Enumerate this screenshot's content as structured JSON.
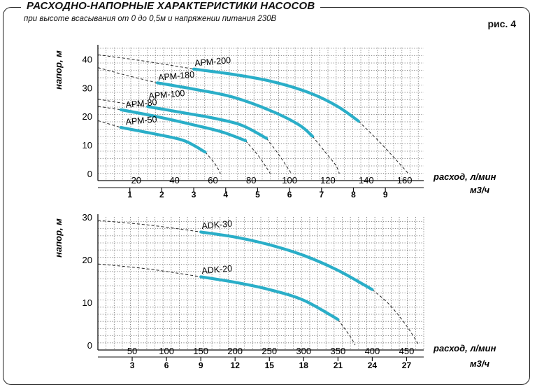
{
  "header": {
    "title": "РАСХОДНО-НАПОРНЫЕ ХАРАКТЕРИСТИКИ НАСОСОВ",
    "subtitle": "при высоте всасывания от 0 до 0,5м  и напряжении питания 230В",
    "figure_label": "рис. 4"
  },
  "colors": {
    "curve": "#2aaec8",
    "grid": "#666666",
    "axis": "#111111"
  },
  "chart_data": [
    {
      "type": "line",
      "ylabel": "напор, м",
      "xlabel": "расход, л/мин",
      "x2label": "м3/ч",
      "xlim": [
        0,
        170
      ],
      "ylim": [
        0,
        44
      ],
      "x_ticks": [
        "20",
        "40",
        "60",
        "80",
        "100",
        "120",
        "140",
        "160"
      ],
      "x_tick_values": [
        20,
        40,
        60,
        80,
        100,
        120,
        140,
        160
      ],
      "y_ticks": [
        "0",
        "10",
        "20",
        "30",
        "40"
      ],
      "y_tick_values": [
        0,
        10,
        20,
        30,
        40
      ],
      "x2_ticks": [
        "1",
        "2",
        "3",
        "4",
        "5",
        "6",
        "7",
        "8",
        "9"
      ],
      "x2_tick_values": [
        16.67,
        33.33,
        50,
        66.67,
        83.33,
        100,
        116.67,
        133.33,
        150
      ],
      "grid": true,
      "series": [
        {
          "name": "АРМ-200",
          "label_at": [
            50,
            36.5
          ],
          "dashed": [
            [
              0,
              41.5
            ],
            [
              20,
              39.7
            ],
            [
              40,
              37.6
            ],
            [
              50,
              36.5
            ]
          ],
          "solid": [
            [
              50,
              36.5
            ],
            [
              70,
              34.7
            ],
            [
              90,
              32.3
            ],
            [
              110,
              28.3
            ],
            [
              125,
              23.5
            ],
            [
              136,
              18.3
            ]
          ],
          "dashed_end": [
            [
              136,
              18.3
            ],
            [
              147,
              11
            ],
            [
              158,
              3
            ],
            [
              162,
              0
            ]
          ]
        },
        {
          "name": "АРМ-180",
          "label_at": [
            31,
            31.5
          ],
          "dashed": [
            [
              0,
              37
            ],
            [
              15,
              34.3
            ],
            [
              31,
              31.7
            ]
          ],
          "solid": [
            [
              31,
              31.7
            ],
            [
              50,
              29.5
            ],
            [
              70,
              26.8
            ],
            [
              90,
              22
            ],
            [
              105,
              17
            ],
            [
              112,
              13
            ]
          ],
          "dashed_end": [
            [
              112,
              13
            ],
            [
              118,
              8
            ],
            [
              124,
              3
            ],
            [
              126,
              0
            ]
          ]
        },
        {
          "name": "АРМ-100",
          "label_at": [
            26,
            25
          ],
          "dashed": [
            [
              0,
              26
            ],
            [
              13,
              24.6
            ],
            [
              26,
              23.4
            ]
          ],
          "solid": [
            [
              26,
              23.4
            ],
            [
              45,
              21.2
            ],
            [
              60,
              19.4
            ],
            [
              75,
              16.9
            ],
            [
              88,
              12.3
            ]
          ],
          "dashed_end": [
            [
              88,
              12.3
            ],
            [
              94,
              7
            ],
            [
              99,
              2
            ],
            [
              101,
              0
            ]
          ]
        },
        {
          "name": "АРМ-80",
          "label_at": [
            14,
            22
          ],
          "dashed": [
            [
              0,
              23.5
            ],
            [
              12,
              22.3
            ]
          ],
          "solid": [
            [
              12,
              22.3
            ],
            [
              30,
              20
            ],
            [
              50,
              17
            ],
            [
              65,
              14.5
            ],
            [
              77,
              11.5
            ]
          ],
          "dashed_end": [
            [
              77,
              11.5
            ],
            [
              84,
              6
            ],
            [
              89,
              1
            ],
            [
              90,
              0
            ]
          ]
        },
        {
          "name": "АРМ-50",
          "label_at": [
            14,
            16
          ],
          "dashed": [
            [
              0,
              18.5
            ],
            [
              12,
              16.1
            ]
          ],
          "solid": [
            [
              12,
              16.1
            ],
            [
              30,
              13.8
            ],
            [
              45,
              11.5
            ],
            [
              56,
              7.5
            ]
          ],
          "dashed_end": [
            [
              56,
              7.5
            ],
            [
              61,
              3.5
            ],
            [
              64,
              0
            ]
          ]
        }
      ]
    },
    {
      "type": "line",
      "ylabel": "напор, м",
      "xlabel": "расход, л/мин",
      "x2label": "м3/ч",
      "xlim": [
        0,
        475
      ],
      "ylim": [
        0,
        30
      ],
      "x_ticks": [
        "50",
        "100",
        "150",
        "200",
        "250",
        "300",
        "350",
        "400",
        "450"
      ],
      "x_tick_values": [
        50,
        100,
        150,
        200,
        250,
        300,
        350,
        400,
        450
      ],
      "y_ticks": [
        "0",
        "10",
        "20",
        "30"
      ],
      "y_tick_values": [
        0,
        10,
        20,
        30
      ],
      "x2_ticks": [
        "3",
        "6",
        "9",
        "12",
        "15",
        "18",
        "21",
        "24",
        "27"
      ],
      "x2_tick_values": [
        50,
        100,
        150,
        200,
        250,
        300,
        350,
        400,
        450
      ],
      "grid": true,
      "series": [
        {
          "name": "ADK-30",
          "label_at": [
            150,
            26.5
          ],
          "dashed": [
            [
              0,
              29.2
            ],
            [
              75,
              28.1
            ],
            [
              150,
              26.5
            ]
          ],
          "solid": [
            [
              150,
              26.5
            ],
            [
              200,
              25.3
            ],
            [
              250,
              23.5
            ],
            [
              300,
              21
            ],
            [
              350,
              17.5
            ],
            [
              400,
              13
            ]
          ],
          "dashed_end": [
            [
              400,
              13
            ],
            [
              425,
              9.5
            ],
            [
              450,
              4.5
            ],
            [
              468,
              0
            ]
          ]
        },
        {
          "name": "ADK-20",
          "label_at": [
            150,
            16
          ],
          "dashed": [
            [
              0,
              19
            ],
            [
              75,
              17.8
            ],
            [
              150,
              16
            ]
          ],
          "solid": [
            [
              150,
              16
            ],
            [
              200,
              14.7
            ],
            [
              250,
              13
            ],
            [
              300,
              10.5
            ],
            [
              350,
              6
            ]
          ],
          "dashed_end": [
            [
              350,
              6
            ],
            [
              368,
              2
            ],
            [
              375,
              0
            ]
          ]
        }
      ]
    }
  ]
}
